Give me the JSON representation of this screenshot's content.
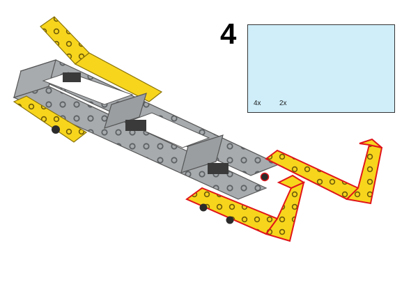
{
  "step": {
    "number": "4"
  },
  "parts_list": {
    "items": [
      {
        "part": "connector-pin-with-friction",
        "quantity": "4x",
        "color": "#2b2b2b"
      },
      {
        "part": "angled-liftarm-yellow",
        "quantity": "2x",
        "color": "#f7d51d"
      }
    ]
  },
  "colors": {
    "beam_yellow": "#f7d51d",
    "frame_gray": "#a7abae",
    "highlight_red": "#e0141a",
    "callout_bg": "#cfeefa"
  }
}
